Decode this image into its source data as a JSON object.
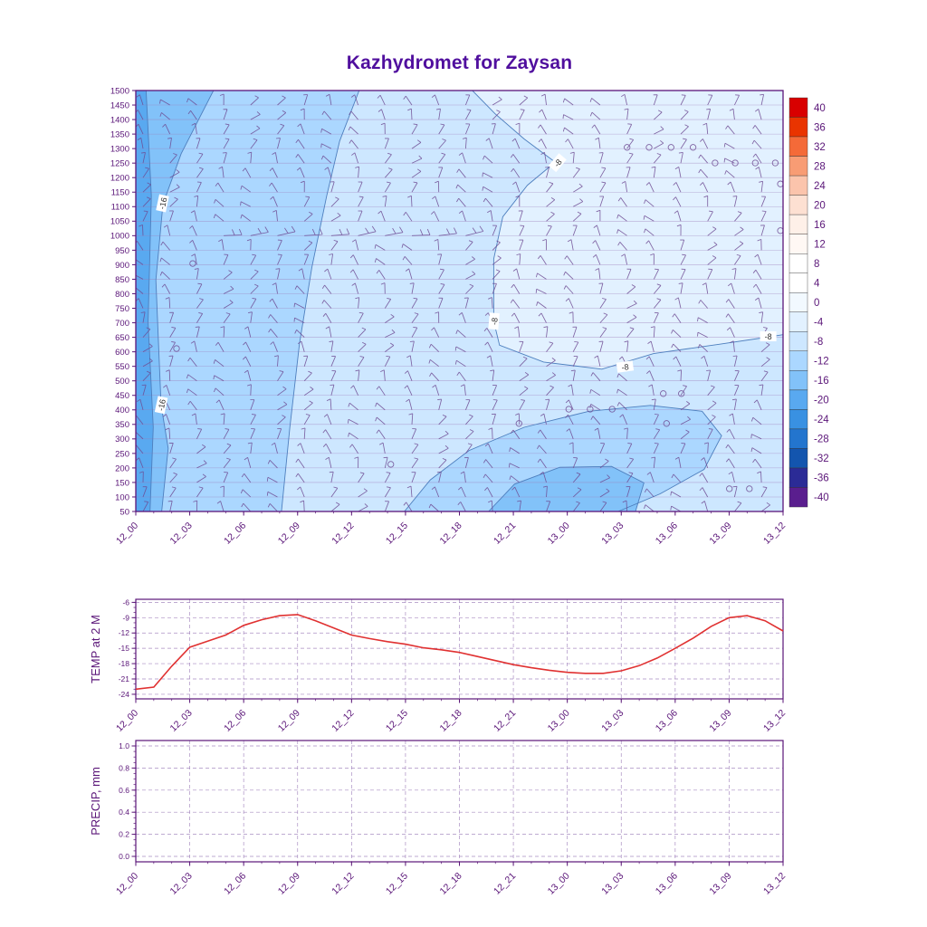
{
  "title": "Kazhydromet for Zaysan",
  "colors": {
    "title": "#500F9E",
    "axis": "#5A1578",
    "grid": "#9B7BB8",
    "barb": "#6E4B93",
    "temp_line": "#E03131",
    "contour_line": "#4E7FBE",
    "contour_label": "#2E2E2E"
  },
  "time_labels": [
    "12_00",
    "12_03",
    "12_06",
    "12_09",
    "12_12",
    "12_15",
    "12_18",
    "12_21",
    "13_00",
    "13_03",
    "13_06",
    "13_09",
    "13_12"
  ],
  "chart_data": [
    {
      "type": "heatmap",
      "name": "temperature-height-section",
      "title": "Kazhydromet for Zaysan",
      "y_ticks": [
        1500,
        1450,
        1400,
        1350,
        1300,
        1250,
        1200,
        1150,
        1100,
        1050,
        1000,
        950,
        900,
        850,
        800,
        750,
        700,
        650,
        600,
        550,
        500,
        450,
        400,
        350,
        300,
        250,
        200,
        150,
        100,
        50
      ],
      "colorbar": {
        "values": [
          40,
          36,
          32,
          28,
          24,
          20,
          16,
          12,
          8,
          4,
          0,
          -4,
          -8,
          -12,
          -16,
          -20,
          -24,
          -28,
          -32,
          -36,
          -40
        ],
        "colors": [
          "#D80000",
          "#E93400",
          "#F46A38",
          "#F89C74",
          "#FBC4AC",
          "#FDE0D2",
          "#FEF0E8",
          "#FFF8F4",
          "#FFFFFF",
          "#FFFFFF",
          "#F2F9FF",
          "#E2F1FF",
          "#CDE7FF",
          "#ABD7FF",
          "#82C2F9",
          "#59A9F0",
          "#3991E2",
          "#2375CE",
          "#1355AE",
          "#2B2B96",
          "#5A1E8E"
        ]
      },
      "regions": [
        {
          "name": "band-m8-m12-base",
          "color": "#CDE7FF",
          "points": [
            [
              0,
              0
            ],
            [
              1,
              0
            ],
            [
              1,
              1
            ],
            [
              0,
              1
            ]
          ]
        },
        {
          "name": "band-m4-m8-right",
          "color": "#E2F1FF",
          "points": [
            [
              0.52,
              0
            ],
            [
              0.555,
              0.055
            ],
            [
              0.6,
              0.115
            ],
            [
              0.648,
              0.17
            ],
            [
              0.605,
              0.225
            ],
            [
              0.567,
              0.3
            ],
            [
              0.553,
              0.4
            ],
            [
              0.553,
              0.548
            ],
            [
              0.562,
              0.605
            ],
            [
              0.63,
              0.645
            ],
            [
              0.72,
              0.662
            ],
            [
              0.8,
              0.625
            ],
            [
              0.9,
              0.603
            ],
            [
              0.975,
              0.586
            ],
            [
              1.0,
              0.58
            ],
            [
              1,
              0
            ]
          ]
        },
        {
          "name": "band-m12-m16-left",
          "color": "#ABD7FF",
          "points": [
            [
              0.12,
              0
            ],
            [
              0.345,
              0
            ],
            [
              0.315,
              0.12
            ],
            [
              0.295,
              0.25
            ],
            [
              0.272,
              0.42
            ],
            [
              0.253,
              0.6
            ],
            [
              0.238,
              0.8
            ],
            [
              0.225,
              1
            ],
            [
              0.04,
              1
            ],
            [
              0.05,
              0.85
            ],
            [
              0.039,
              0.746
            ],
            [
              0.031,
              0.45
            ],
            [
              0.042,
              0.27
            ],
            [
              0.07,
              0.15
            ]
          ]
        },
        {
          "name": "band-m16-m20-left",
          "color": "#82C2F9",
          "points": [
            [
              0,
              0
            ],
            [
              0.12,
              0
            ],
            [
              0.07,
              0.15
            ],
            [
              0.042,
              0.27
            ],
            [
              0.031,
              0.45
            ],
            [
              0.039,
              0.746
            ],
            [
              0.05,
              0.85
            ],
            [
              0.04,
              1
            ],
            [
              0,
              1
            ]
          ]
        },
        {
          "name": "band-m20-m24-edge",
          "color": "#59A9F0",
          "points": [
            [
              0,
              0
            ],
            [
              0.016,
              0
            ],
            [
              0.024,
              0.25
            ],
            [
              0.019,
              0.55
            ],
            [
              0.027,
              0.8
            ],
            [
              0.022,
              1
            ],
            [
              0,
              1
            ]
          ]
        },
        {
          "name": "band-m12-m16-blob",
          "color": "#ABD7FF",
          "points": [
            [
              0.415,
              1
            ],
            [
              0.455,
              0.925
            ],
            [
              0.515,
              0.855
            ],
            [
              0.6,
              0.8
            ],
            [
              0.7,
              0.762
            ],
            [
              0.795,
              0.748
            ],
            [
              0.875,
              0.762
            ],
            [
              0.905,
              0.82
            ],
            [
              0.878,
              0.9
            ],
            [
              0.81,
              0.958
            ],
            [
              0.745,
              1
            ]
          ]
        },
        {
          "name": "band-m16-m20-blob-core",
          "color": "#82C2F9",
          "points": [
            [
              0.545,
              1
            ],
            [
              0.585,
              0.935
            ],
            [
              0.655,
              0.895
            ],
            [
              0.735,
              0.893
            ],
            [
              0.785,
              0.932
            ],
            [
              0.772,
              1
            ]
          ]
        }
      ],
      "contour_lines": [
        {
          "level": "-8",
          "points": [
            [
              0.52,
              0
            ],
            [
              0.555,
              0.055
            ],
            [
              0.6,
              0.115
            ],
            [
              0.648,
              0.17
            ],
            [
              0.605,
              0.225
            ],
            [
              0.567,
              0.3
            ],
            [
              0.553,
              0.4
            ],
            [
              0.553,
              0.548
            ],
            [
              0.562,
              0.605
            ],
            [
              0.63,
              0.645
            ],
            [
              0.72,
              0.662
            ],
            [
              0.8,
              0.625
            ],
            [
              0.9,
              0.603
            ],
            [
              0.975,
              0.586
            ],
            [
              1.0,
              0.58
            ]
          ]
        },
        {
          "level": "-12",
          "points": [
            [
              0.345,
              0
            ],
            [
              0.315,
              0.12
            ],
            [
              0.295,
              0.25
            ],
            [
              0.272,
              0.42
            ],
            [
              0.253,
              0.6
            ],
            [
              0.238,
              0.8
            ],
            [
              0.225,
              1
            ]
          ]
        },
        {
          "level": "-16",
          "points": [
            [
              0.12,
              0
            ],
            [
              0.07,
              0.15
            ],
            [
              0.042,
              0.27
            ],
            [
              0.031,
              0.45
            ],
            [
              0.039,
              0.746
            ],
            [
              0.05,
              0.85
            ],
            [
              0.04,
              1
            ]
          ]
        },
        {
          "level": "-20",
          "points": [
            [
              0.016,
              0
            ],
            [
              0.024,
              0.25
            ],
            [
              0.019,
              0.55
            ],
            [
              0.027,
              0.8
            ],
            [
              0.022,
              1
            ]
          ]
        },
        {
          "level": "-12-blob",
          "points": [
            [
              0.415,
              1
            ],
            [
              0.455,
              0.925
            ],
            [
              0.515,
              0.855
            ],
            [
              0.6,
              0.8
            ],
            [
              0.7,
              0.762
            ],
            [
              0.795,
              0.748
            ],
            [
              0.875,
              0.762
            ],
            [
              0.905,
              0.82
            ],
            [
              0.878,
              0.9
            ],
            [
              0.81,
              0.958
            ],
            [
              0.745,
              1
            ]
          ]
        },
        {
          "level": "-16-blob",
          "points": [
            [
              0.545,
              1
            ],
            [
              0.585,
              0.935
            ],
            [
              0.655,
              0.895
            ],
            [
              0.735,
              0.893
            ],
            [
              0.785,
              0.932
            ],
            [
              0.772,
              1
            ]
          ]
        }
      ],
      "contour_labels": [
        {
          "text": "-16",
          "u": 0.042,
          "v": 0.268,
          "rot": -78
        },
        {
          "text": "-16",
          "u": 0.04,
          "v": 0.747,
          "rot": -78
        },
        {
          "text": "-8",
          "u": 0.652,
          "v": 0.172,
          "rot": -50
        },
        {
          "text": "-8",
          "u": 0.554,
          "v": 0.548,
          "rot": -85
        },
        {
          "text": "-8",
          "u": 0.756,
          "v": 0.657,
          "rot": -8
        },
        {
          "text": "-8",
          "u": 0.977,
          "v": 0.585,
          "rot": 0
        }
      ],
      "calm_circles": [
        [
          0.759,
          0.135
        ],
        [
          0.793,
          0.135
        ],
        [
          0.827,
          0.135
        ],
        [
          0.861,
          0.135
        ],
        [
          0.895,
          0.172
        ],
        [
          0.926,
          0.172
        ],
        [
          0.957,
          0.172
        ],
        [
          0.988,
          0.172
        ],
        [
          0.996,
          0.222
        ],
        [
          0.996,
          0.333
        ],
        [
          0.088,
          0.411
        ],
        [
          0.063,
          0.613
        ],
        [
          0.815,
          0.72
        ],
        [
          0.843,
          0.72
        ],
        [
          0.669,
          0.757
        ],
        [
          0.702,
          0.757
        ],
        [
          0.736,
          0.757
        ],
        [
          0.592,
          0.791
        ],
        [
          0.82,
          0.791
        ],
        [
          0.394,
          0.888
        ],
        [
          0.917,
          0.946
        ],
        [
          0.948,
          0.946
        ]
      ]
    },
    {
      "type": "line",
      "name": "temp-2m",
      "ylabel": "TEMP at 2 M",
      "y_ticks": [
        -6,
        -9,
        -12,
        -15,
        -18,
        -21,
        -24
      ],
      "ylim": [
        -24.9,
        -5.4
      ],
      "hours": 36,
      "values": [
        -23.0,
        -22.6,
        -18.5,
        -14.8,
        -13.6,
        -12.4,
        -10.5,
        -9.4,
        -8.6,
        -8.4,
        -9.6,
        -11.0,
        -12.4,
        -13.1,
        -13.7,
        -14.2,
        -14.9,
        -15.3,
        -15.8,
        -16.6,
        -17.4,
        -18.2,
        -18.8,
        -19.3,
        -19.7,
        -19.9,
        -19.9,
        -19.4,
        -18.4,
        -16.9,
        -15.0,
        -13.0,
        -10.7,
        -9.0,
        -8.6,
        -9.6,
        -11.6
      ]
    },
    {
      "type": "line",
      "name": "precip",
      "ylabel": "PRECIP, mm",
      "y_ticks": [
        1.0,
        0.8,
        0.6,
        0.4,
        0.2,
        0.0
      ],
      "ylim": [
        0,
        1
      ],
      "hours": 36,
      "values": [
        0,
        0,
        0,
        0,
        0,
        0,
        0,
        0,
        0,
        0,
        0,
        0,
        0,
        0,
        0,
        0,
        0,
        0,
        0,
        0,
        0,
        0,
        0,
        0,
        0,
        0,
        0,
        0,
        0,
        0,
        0,
        0,
        0,
        0,
        0,
        0,
        0
      ]
    }
  ]
}
